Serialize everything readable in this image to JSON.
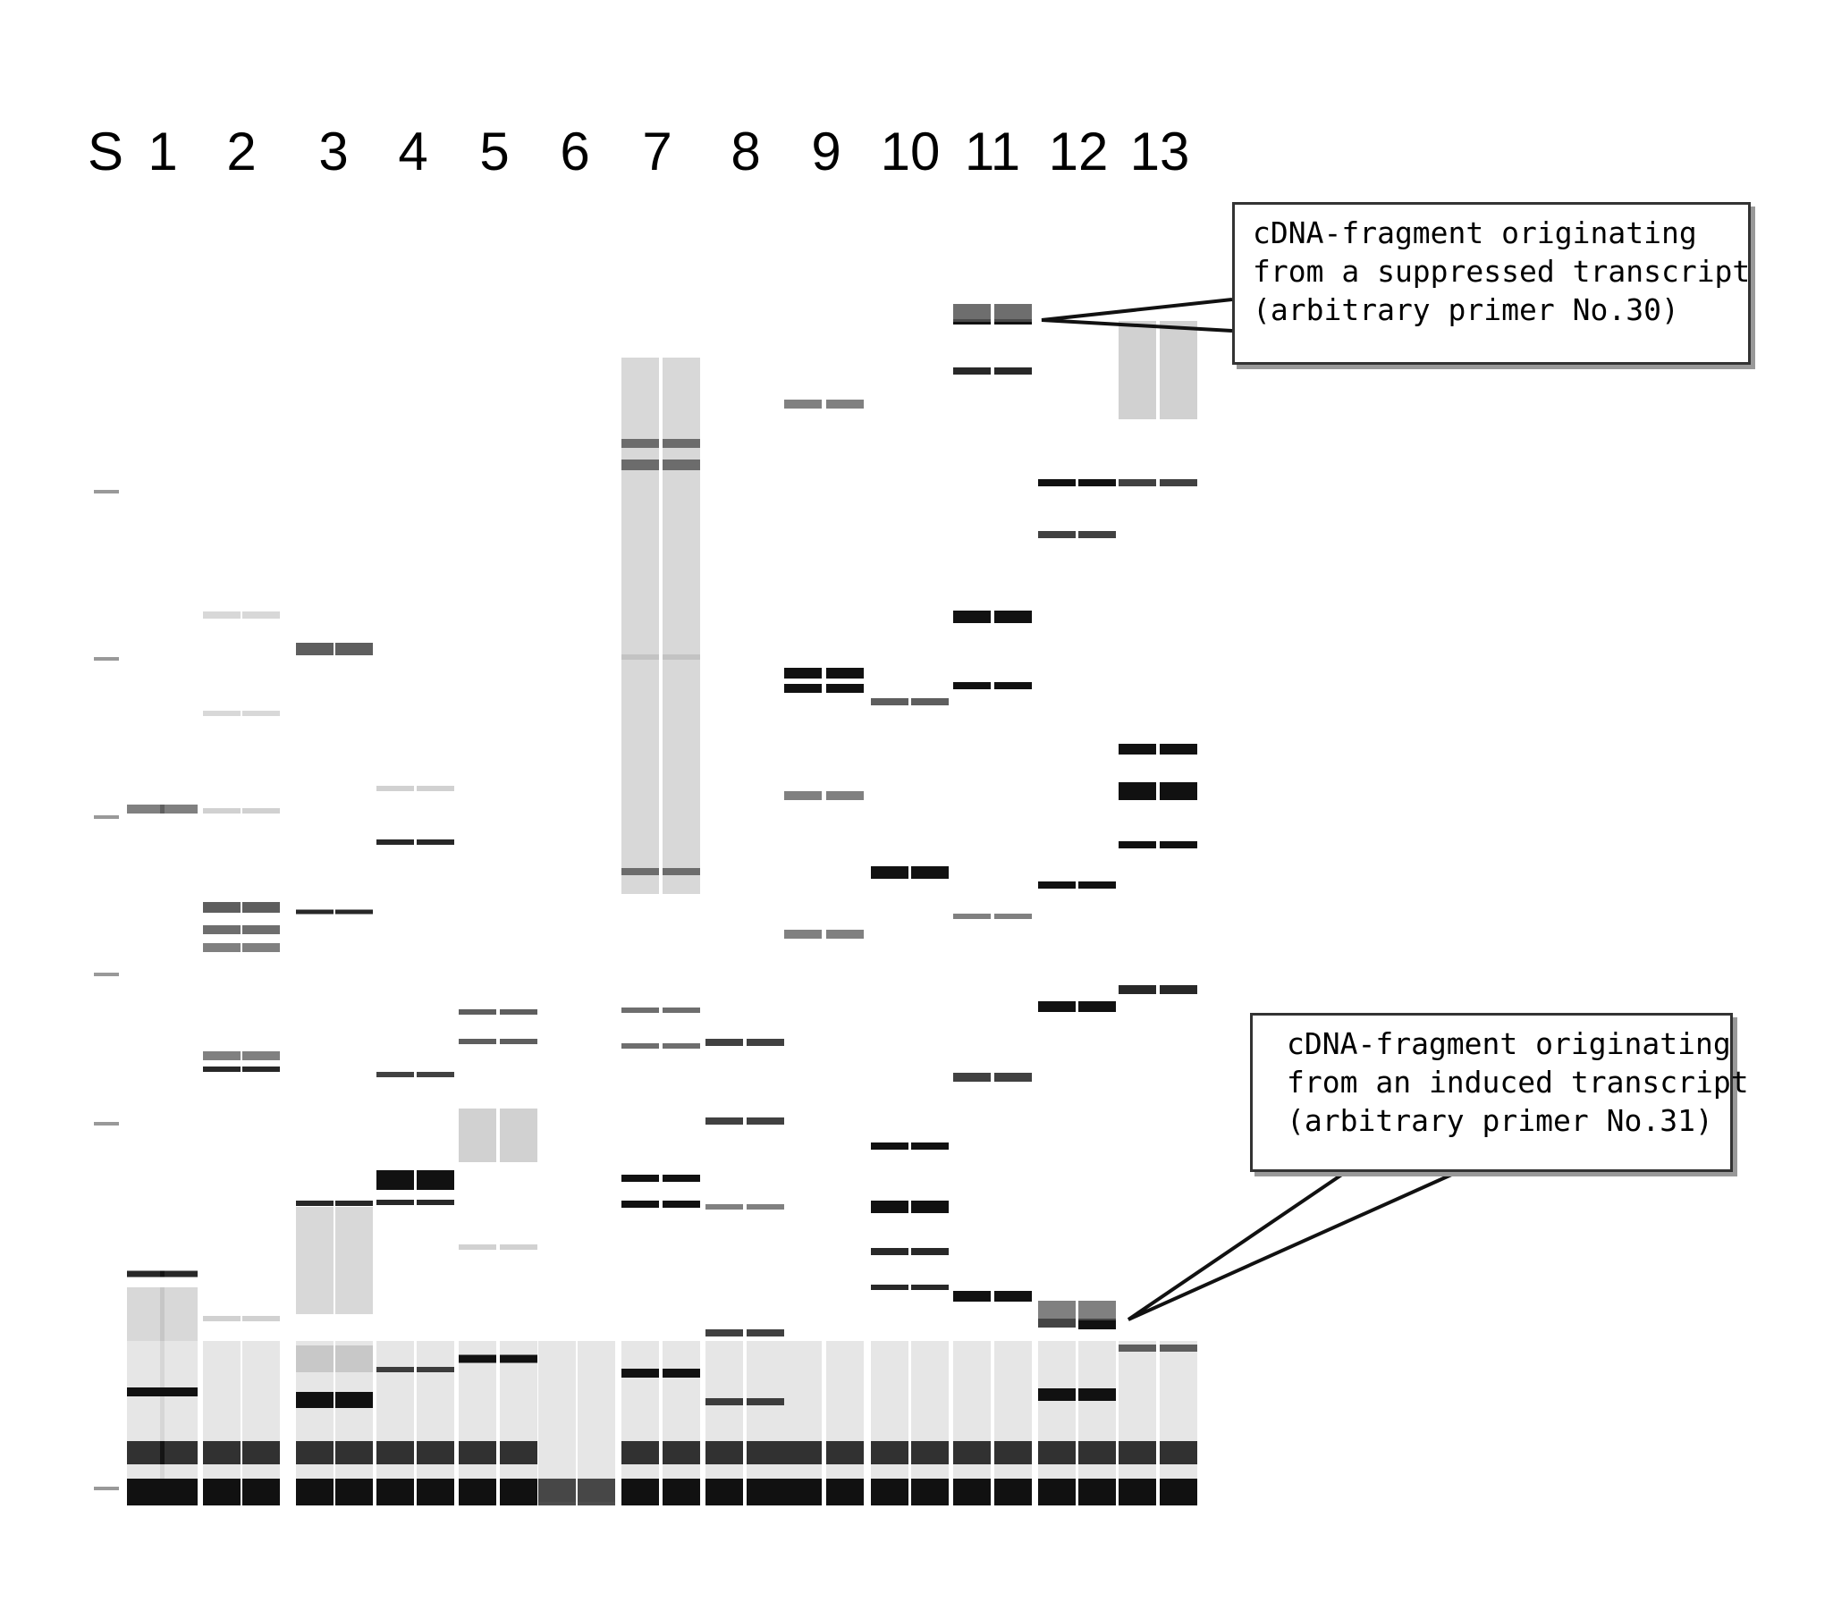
{
  "lane_labels": [
    "S",
    "1",
    "2",
    "3",
    "4",
    "5",
    "6",
    "7",
    "8",
    "9",
    "10",
    "11",
    "12",
    "13"
  ],
  "callouts": {
    "suppressed": {
      "line1": "cDNA-fragment originating",
      "line2": "from a suppressed transcript",
      "line3": "(arbitrary primer No.30)"
    },
    "induced": {
      "line1": "cDNA-fragment originating",
      "line2": "from an induced transcript",
      "line3": "(arbitrary primer No.31)"
    }
  },
  "colors": {
    "band_dark": "#111111",
    "band_mid": "#555555",
    "smear": "#b8b8b8",
    "callout_border": "#333333"
  }
}
